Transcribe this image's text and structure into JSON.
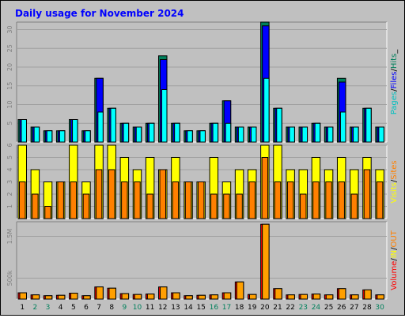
{
  "title": "Daily usage for November 2024",
  "colors": {
    "background": "#c0c0c0",
    "panel": "#c0c0c0",
    "hits": "#00805c",
    "files": "#0000ff",
    "pages": "#00ffff",
    "visits": "#ffff00",
    "sites": "#ff8000",
    "volume_in": "#ff0000",
    "volume_out": "#ffa000",
    "title": "#0000ff",
    "weekend_day": "#00805c"
  },
  "chart_data": [
    {
      "type": "bar",
      "panel": "hits",
      "legend": [
        {
          "text": "Pages",
          "color": "#00c0c0"
        },
        {
          "text": "/",
          "color": "#000000"
        },
        {
          "text": "Files",
          "color": "#0000ff"
        },
        {
          "text": "/",
          "color": "#000000"
        },
        {
          "text": "Hits",
          "color": "#00805c"
        },
        {
          "text": "_",
          "color": "#000000"
        }
      ],
      "ylim": [
        0,
        32
      ],
      "yticks": [
        "5",
        "10",
        "15",
        "20",
        "25",
        "30"
      ],
      "ytick_values": [
        5,
        10,
        15,
        20,
        25,
        30
      ],
      "series": [
        {
          "name": "Hits",
          "values": [
            6,
            4,
            3,
            3,
            6,
            3,
            17,
            9,
            5,
            4,
            5,
            23,
            5,
            3,
            3,
            5,
            11,
            4,
            4,
            32,
            9,
            4,
            4,
            5,
            4,
            17,
            4,
            9,
            4
          ]
        },
        {
          "name": "Files",
          "values": [
            6,
            4,
            3,
            3,
            6,
            3,
            17,
            9,
            5,
            4,
            5,
            22,
            5,
            3,
            3,
            5,
            11,
            4,
            4,
            31,
            9,
            4,
            4,
            5,
            4,
            16,
            4,
            9,
            4
          ]
        },
        {
          "name": "Pages",
          "values": [
            6,
            4,
            3,
            3,
            6,
            3,
            8,
            9,
            5,
            4,
            5,
            14,
            5,
            3,
            3,
            5,
            5,
            4,
            4,
            17,
            9,
            4,
            4,
            5,
            4,
            8,
            4,
            9,
            4
          ]
        }
      ]
    },
    {
      "type": "bar",
      "panel": "visits",
      "legend": [
        {
          "text": "Visits",
          "color": "#ffff00"
        },
        {
          "text": "/",
          "color": "#000000"
        },
        {
          "text": "Sites",
          "color": "#ff8000"
        }
      ],
      "ylim": [
        0,
        6
      ],
      "yticks": [
        "1",
        "2",
        "3",
        "4",
        "5",
        "6"
      ],
      "ytick_values": [
        1,
        2,
        3,
        4,
        5,
        6
      ],
      "series": [
        {
          "name": "Visits",
          "values": [
            6,
            4,
            3,
            3,
            6,
            3,
            6,
            6,
            5,
            4,
            5,
            4,
            5,
            3,
            3,
            5,
            3,
            4,
            4,
            6,
            6,
            4,
            4,
            5,
            4,
            5,
            4,
            5,
            4
          ]
        },
        {
          "name": "Sites",
          "values": [
            3,
            2,
            1,
            3,
            3,
            2,
            4,
            4,
            3,
            3,
            2,
            4,
            3,
            3,
            3,
            2,
            2,
            2,
            3,
            5,
            3,
            3,
            2,
            3,
            3,
            3,
            2,
            4,
            3
          ]
        }
      ]
    },
    {
      "type": "bar",
      "panel": "volume",
      "legend": [
        {
          "text": "Volume",
          "color": "#ff0000"
        },
        {
          "text": "/",
          "color": "#000000"
        },
        {
          "text": "IN",
          "color": "#ffff00"
        },
        {
          "text": "/",
          "color": "#000000"
        },
        {
          "text": "OUT",
          "color": "#ff8000"
        }
      ],
      "ylim": [
        0,
        1850
      ],
      "yticks": [
        "500k",
        "1.5M"
      ],
      "ytick_values": [
        500,
        1500
      ],
      "series": [
        {
          "name": "Volume",
          "values": [
            150,
            100,
            80,
            90,
            140,
            80,
            290,
            260,
            130,
            110,
            120,
            290,
            150,
            80,
            90,
            100,
            150,
            410,
            110,
            1790,
            250,
            100,
            110,
            120,
            100,
            250,
            100,
            220,
            100
          ]
        }
      ]
    }
  ],
  "x_labels": [
    {
      "text": "1",
      "weekend": false
    },
    {
      "text": "2",
      "weekend": true
    },
    {
      "text": "3",
      "weekend": true
    },
    {
      "text": "4",
      "weekend": false
    },
    {
      "text": "5",
      "weekend": false
    },
    {
      "text": "6",
      "weekend": false
    },
    {
      "text": "7",
      "weekend": false
    },
    {
      "text": "8",
      "weekend": false
    },
    {
      "text": "9",
      "weekend": true
    },
    {
      "text": "10",
      "weekend": true
    },
    {
      "text": "11",
      "weekend": false
    },
    {
      "text": "12",
      "weekend": false
    },
    {
      "text": "13",
      "weekend": false
    },
    {
      "text": "14",
      "weekend": false
    },
    {
      "text": "15",
      "weekend": false
    },
    {
      "text": "16",
      "weekend": true
    },
    {
      "text": "17",
      "weekend": true
    },
    {
      "text": "18",
      "weekend": false
    },
    {
      "text": "19",
      "weekend": false
    },
    {
      "text": "20",
      "weekend": false
    },
    {
      "text": "21",
      "weekend": false
    },
    {
      "text": "22",
      "weekend": false
    },
    {
      "text": "23",
      "weekend": true
    },
    {
      "text": "24",
      "weekend": true
    },
    {
      "text": "25",
      "weekend": false
    },
    {
      "text": "26",
      "weekend": false
    },
    {
      "text": "27",
      "weekend": false
    },
    {
      "text": "28",
      "weekend": false
    },
    {
      "text": "30",
      "weekend": true
    }
  ]
}
